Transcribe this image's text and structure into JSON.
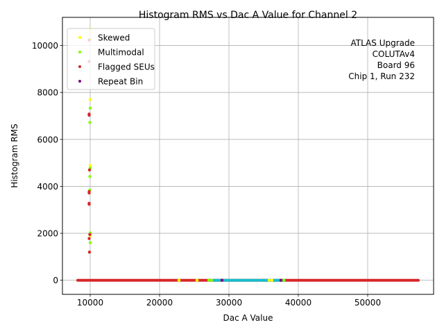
{
  "chart_data": {
    "type": "scatter",
    "title": "Histogram RMS vs Dac A Value for Channel 2",
    "xlabel": "Dac A Value",
    "ylabel": "Histogram RMS",
    "xlim": [
      6000,
      59500
    ],
    "ylim": [
      -600,
      11200
    ],
    "x_ticks": [
      10000,
      20000,
      30000,
      40000,
      50000
    ],
    "x_tick_labels": [
      "10000",
      "20000",
      "30000",
      "40000",
      "50000"
    ],
    "y_ticks": [
      0,
      2000,
      4000,
      6000,
      8000,
      10000
    ],
    "y_tick_labels": [
      "0",
      "2000",
      "4000",
      "6000",
      "8000",
      "10000"
    ],
    "grid": true,
    "legend_position": "top-left",
    "annotation": [
      "ATLAS Upgrade",
      "COLUTAv4",
      "Board 96",
      "Chip 1, Run 232"
    ],
    "baseline_segments": [
      {
        "x_start": 8200,
        "x_end": 57300,
        "y": 0,
        "color": "#d62728"
      },
      {
        "x_start": 27600,
        "x_end": 38000,
        "y": 0,
        "color": "#17becf"
      }
    ],
    "series": [
      {
        "name": "Skewed",
        "color": "#ffff00",
        "points": [
          {
            "x": 10000,
            "y": 10700
          },
          {
            "x": 10000,
            "y": 7700
          },
          {
            "x": 10000,
            "y": 4900
          },
          {
            "x": 10000,
            "y": 1900
          },
          {
            "x": 22800,
            "y": 0
          },
          {
            "x": 25400,
            "y": 0
          },
          {
            "x": 35800,
            "y": 0
          },
          {
            "x": 36200,
            "y": 0
          }
        ]
      },
      {
        "name": "Multimodal",
        "color": "#7fff00",
        "points": [
          {
            "x": 9950,
            "y": 10250
          },
          {
            "x": 10000,
            "y": 7330
          },
          {
            "x": 9950,
            "y": 6720
          },
          {
            "x": 10000,
            "y": 4780
          },
          {
            "x": 9950,
            "y": 4420
          },
          {
            "x": 9950,
            "y": 3840
          },
          {
            "x": 10000,
            "y": 2020
          },
          {
            "x": 10000,
            "y": 1600
          },
          {
            "x": 27100,
            "y": 0
          },
          {
            "x": 27500,
            "y": 0
          },
          {
            "x": 37900,
            "y": 0
          }
        ]
      },
      {
        "name": "Flagged SEUs",
        "color": "#d62728",
        "points": [
          {
            "x": 9850,
            "y": 10230
          },
          {
            "x": 9850,
            "y": 9320
          },
          {
            "x": 9850,
            "y": 7080
          },
          {
            "x": 9850,
            "y": 7030
          },
          {
            "x": 9900,
            "y": 4700
          },
          {
            "x": 9850,
            "y": 3780
          },
          {
            "x": 9850,
            "y": 3720
          },
          {
            "x": 9850,
            "y": 3280
          },
          {
            "x": 9850,
            "y": 3240
          },
          {
            "x": 9950,
            "y": 1950
          },
          {
            "x": 9850,
            "y": 1780
          },
          {
            "x": 9900,
            "y": 1200
          }
        ]
      },
      {
        "name": "Repeat Bin",
        "color": "#800080",
        "points": [
          {
            "x": 29000,
            "y": 0
          },
          {
            "x": 37500,
            "y": 0
          }
        ]
      }
    ]
  }
}
